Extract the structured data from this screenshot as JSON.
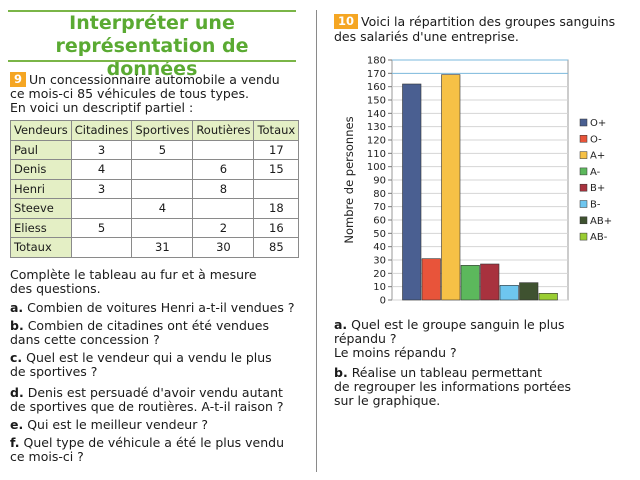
{
  "title": {
    "line1": "Interpréter une",
    "line2": "représentation de données"
  },
  "exercise9": {
    "number": "9",
    "intro_line1": "Un concessionnaire automobile a vendu",
    "intro_line2": "ce mois-ci 85 véhicules de tous types.",
    "intro_line3": "En voici un descriptif partiel :",
    "table": {
      "headers": [
        "Vendeurs",
        "Citadines",
        "Sportives",
        "Routières",
        "Totaux"
      ],
      "rows": [
        [
          "Paul",
          "3",
          "5",
          "",
          "17"
        ],
        [
          "Denis",
          "4",
          "",
          "6",
          "15"
        ],
        [
          "Henri",
          "3",
          "",
          "8",
          ""
        ],
        [
          "Steeve",
          "",
          "4",
          "",
          "18"
        ],
        [
          "Eliess",
          "5",
          "",
          "2",
          "16"
        ],
        [
          "Totaux",
          "",
          "31",
          "30",
          "85"
        ]
      ]
    },
    "consigne_line1": "Complète le tableau au fur et à mesure",
    "consigne_line2": "des questions.",
    "questions": [
      {
        "letter": "a.",
        "line1": "Combien de voitures Henri a-t-il vendues ?",
        "line2": ""
      },
      {
        "letter": "b.",
        "line1": "Combien de citadines ont été vendues",
        "line2": "dans cette concession ?"
      },
      {
        "letter": "c.",
        "line1": "Quel est le vendeur qui a vendu le plus",
        "line2": "de sportives ?"
      },
      {
        "letter": "d.",
        "line1": "Denis est persuadé d'avoir vendu autant",
        "line2": "de sportives que de routières. A-t-il raison ?"
      },
      {
        "letter": "e.",
        "line1": "Qui est le meilleur vendeur ?",
        "line2": ""
      },
      {
        "letter": "f.",
        "line1": "Quel type de véhicule a été le plus vendu",
        "line2": "ce mois-ci ?"
      }
    ]
  },
  "exercise10": {
    "number": "10",
    "intro_line1": "Voici la répartition des groupes sanguins",
    "intro_line2": "des salariés d'une entreprise.",
    "questions": [
      {
        "letter": "a.",
        "line1": "Quel est le groupe sanguin le plus",
        "line2": "répandu ?",
        "line3": "Le moins répandu ?"
      },
      {
        "letter": "b.",
        "line1": "Réalise un tableau permettant",
        "line2": "de regrouper les informations portées",
        "line3": "sur le graphique."
      }
    ]
  },
  "chart_data": {
    "type": "bar",
    "title": "",
    "xlabel": "",
    "ylabel": "Nombre de personnes",
    "ylim": [
      0,
      180
    ],
    "yticks": [
      0,
      10,
      20,
      30,
      40,
      50,
      60,
      70,
      80,
      90,
      100,
      110,
      120,
      130,
      140,
      150,
      160,
      170,
      180
    ],
    "grid": "horizontal",
    "legend_position": "right",
    "series": [
      {
        "name": "O+",
        "value": 162,
        "color": "#4a5f91"
      },
      {
        "name": "O-",
        "value": 31,
        "color": "#e8543a"
      },
      {
        "name": "A+",
        "value": 169,
        "color": "#f6c146"
      },
      {
        "name": "A-",
        "value": 26,
        "color": "#5cb85c"
      },
      {
        "name": "B+",
        "value": 27,
        "color": "#a8323e"
      },
      {
        "name": "B-",
        "value": 11,
        "color": "#6ec6ef"
      },
      {
        "name": "AB+",
        "value": 13,
        "color": "#3f5230"
      },
      {
        "name": "AB-",
        "value": 5,
        "color": "#9acd32"
      }
    ]
  }
}
